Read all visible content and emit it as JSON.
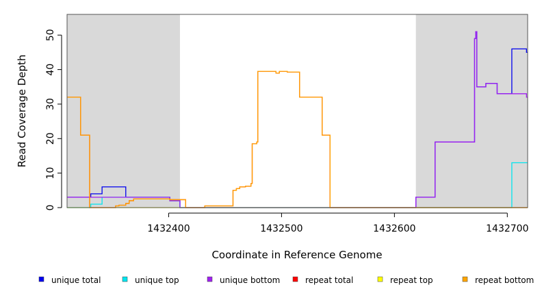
{
  "chart_data": {
    "type": "line",
    "title": "",
    "xlabel": "Coordinate in Reference Genome",
    "ylabel": "Read Coverage Depth",
    "xlim": [
      1432310,
      1432718
    ],
    "ylim": [
      0,
      56
    ],
    "x_ticks": [
      1432400,
      1432500,
      1432600,
      1432700
    ],
    "x_tick_labels": [
      "1432400",
      "1432500",
      "1432600",
      "1432700"
    ],
    "y_ticks": [
      0,
      10,
      20,
      30,
      40,
      50
    ],
    "y_tick_labels": [
      "0",
      "10",
      "20",
      "30",
      "40",
      "50"
    ],
    "shaded_regions": [
      {
        "x_start": 1432310,
        "x_end": 1432410,
        "color": "#d9d9d9"
      },
      {
        "x_start": 1432619,
        "x_end": 1432718,
        "color": "#d9d9d9"
      }
    ],
    "grid": false,
    "legend_position": "bottom",
    "series": [
      {
        "name": "unique total",
        "color": "#0000ee",
        "step": true,
        "points": [
          [
            1432310,
            3
          ],
          [
            1432331,
            4
          ],
          [
            1432341,
            6
          ],
          [
            1432362,
            3
          ],
          [
            1432401,
            2
          ],
          [
            1432410,
            0
          ],
          [
            1432619,
            3
          ],
          [
            1432636,
            19
          ],
          [
            1432671,
            49
          ],
          [
            1432672,
            51
          ],
          [
            1432673,
            35
          ],
          [
            1432681,
            36
          ],
          [
            1432691,
            33
          ],
          [
            1432704,
            46
          ],
          [
            1432717,
            45
          ],
          [
            1432718,
            45
          ]
        ]
      },
      {
        "name": "unique top",
        "color": "#00e5ee",
        "step": true,
        "points": [
          [
            1432310,
            0
          ],
          [
            1432331,
            1
          ],
          [
            1432341,
            3
          ],
          [
            1432401,
            2
          ],
          [
            1432410,
            0
          ],
          [
            1432704,
            13
          ],
          [
            1432718,
            13
          ]
        ]
      },
      {
        "name": "unique bottom",
        "color": "#a020f0",
        "step": true,
        "points": [
          [
            1432310,
            3
          ],
          [
            1432362,
            3
          ],
          [
            1432401,
            2
          ],
          [
            1432410,
            0
          ],
          [
            1432619,
            3
          ],
          [
            1432636,
            19
          ],
          [
            1432671,
            49
          ],
          [
            1432672,
            51
          ],
          [
            1432673,
            35
          ],
          [
            1432681,
            36
          ],
          [
            1432691,
            33
          ],
          [
            1432704,
            33
          ],
          [
            1432717,
            32
          ],
          [
            1432718,
            32
          ]
        ]
      },
      {
        "name": "repeat total",
        "color": "#ff0000",
        "step": true,
        "points": [
          [
            1432310,
            32
          ],
          [
            1432322,
            21
          ],
          [
            1432330,
            0
          ],
          [
            1432353,
            0.5
          ],
          [
            1432356,
            0.7
          ],
          [
            1432362,
            1.2
          ],
          [
            1432365,
            2
          ],
          [
            1432369,
            2.5
          ],
          [
            1432401,
            2.3
          ],
          [
            1432415,
            0
          ],
          [
            1432432,
            0.5
          ],
          [
            1432457,
            5
          ],
          [
            1432460,
            5.5
          ],
          [
            1432463,
            6
          ],
          [
            1432468,
            6.2
          ],
          [
            1432473,
            7
          ],
          [
            1432474,
            18.5
          ],
          [
            1432478,
            19
          ],
          [
            1432479,
            39.5
          ],
          [
            1432495,
            39
          ],
          [
            1432498,
            39.5
          ],
          [
            1432505,
            39.3
          ],
          [
            1432516,
            32
          ],
          [
            1432536,
            21
          ],
          [
            1432543,
            0
          ],
          [
            1432718,
            0
          ]
        ]
      },
      {
        "name": "repeat top",
        "color": "#ffff00",
        "step": true,
        "points": [
          [
            1432310,
            0
          ],
          [
            1432718,
            0
          ]
        ]
      },
      {
        "name": "repeat bottom",
        "color": "#ffa500",
        "step": true,
        "points": [
          [
            1432310,
            32
          ],
          [
            1432322,
            21
          ],
          [
            1432330,
            0
          ],
          [
            1432353,
            0.5
          ],
          [
            1432356,
            0.7
          ],
          [
            1432362,
            1.2
          ],
          [
            1432365,
            2
          ],
          [
            1432369,
            2.5
          ],
          [
            1432401,
            2.3
          ],
          [
            1432415,
            0
          ],
          [
            1432432,
            0.5
          ],
          [
            1432457,
            5
          ],
          [
            1432460,
            5.5
          ],
          [
            1432463,
            6
          ],
          [
            1432468,
            6.2
          ],
          [
            1432473,
            7
          ],
          [
            1432474,
            18.5
          ],
          [
            1432478,
            19
          ],
          [
            1432479,
            39.5
          ],
          [
            1432495,
            39
          ],
          [
            1432498,
            39.5
          ],
          [
            1432505,
            39.3
          ],
          [
            1432516,
            32
          ],
          [
            1432536,
            21
          ],
          [
            1432543,
            0
          ],
          [
            1432718,
            0
          ]
        ]
      }
    ]
  }
}
